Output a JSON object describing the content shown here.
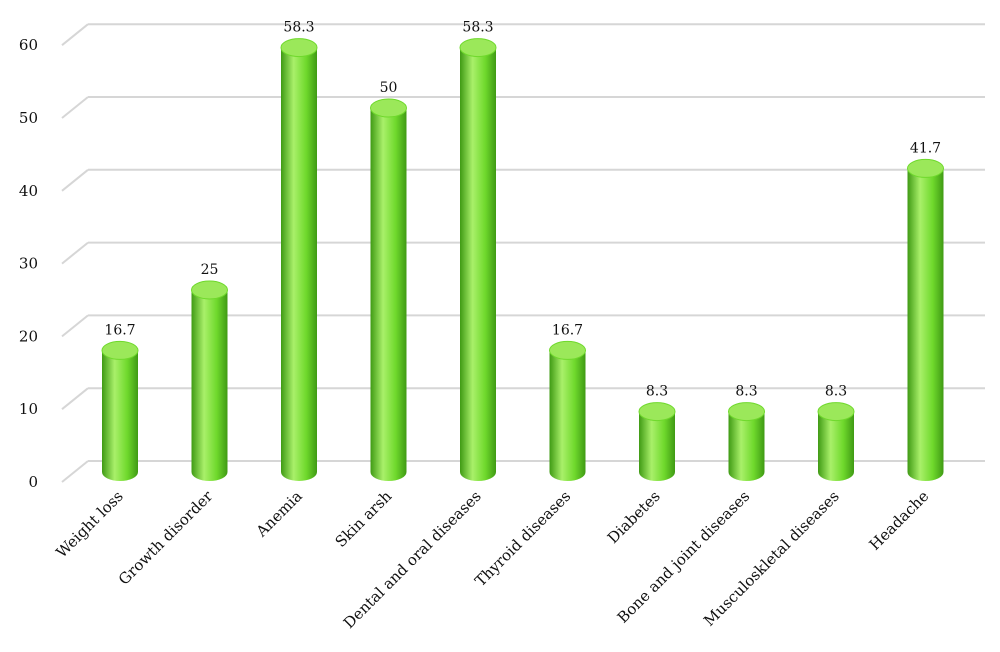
{
  "chart_data": {
    "type": "bar",
    "style": "3d-cylinder",
    "categories": [
      "Weight loss",
      "Growth disorder",
      "Anemia",
      "Skin arsh",
      "Dental and oral diseases",
      "Thyroid diseases",
      "Diabetes",
      "Bone and joint diseases",
      "Musculoskletal diseases",
      "Headache"
    ],
    "values": [
      16.7,
      25,
      58.3,
      50,
      58.3,
      16.7,
      8.3,
      8.3,
      8.3,
      41.7
    ],
    "data_labels": [
      "16.7",
      "25",
      "58.3",
      "50",
      "58.3",
      "16.7",
      "8.3",
      "8.3",
      "8.3",
      "41.7"
    ],
    "yticks": [
      "0",
      "10",
      "20",
      "30",
      "40",
      "50",
      "60"
    ],
    "ylim": [
      0,
      60
    ],
    "grid": true,
    "legend": "none",
    "colors": {
      "bar_light": "#a9f06a",
      "bar_mid": "#6fd92c",
      "bar_dark": "#3f9a14",
      "bar_top": "#9be85a",
      "grid": "#d6d6d6"
    }
  }
}
